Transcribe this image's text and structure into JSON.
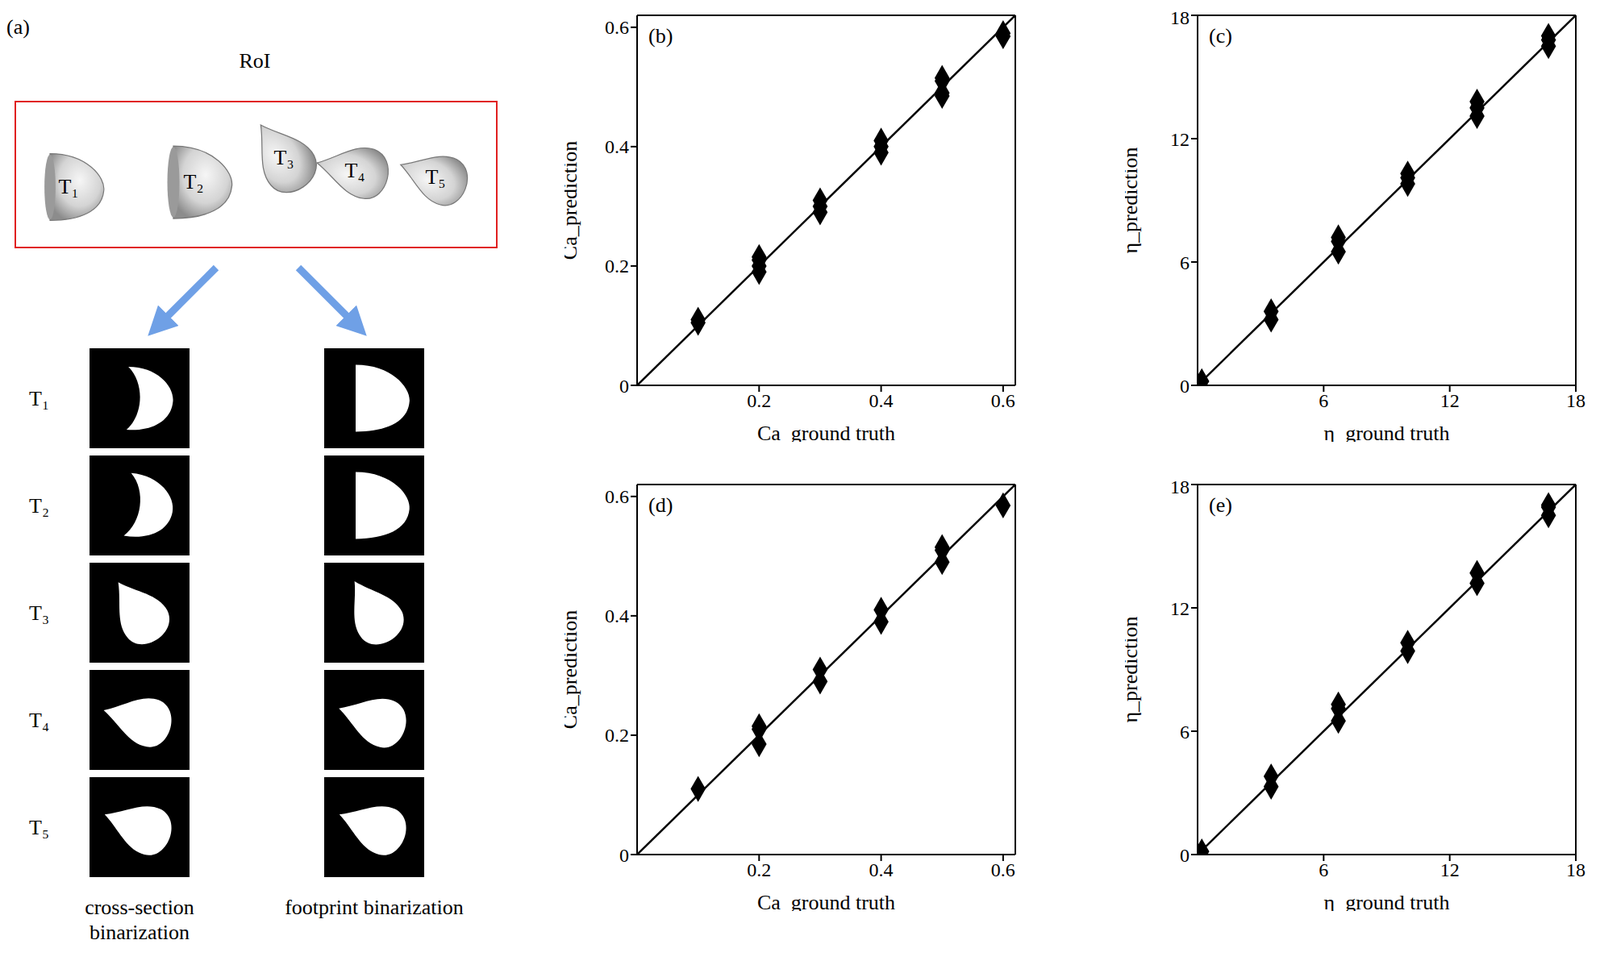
{
  "diagram": {
    "label": "(a)",
    "title": "RoI",
    "items": [
      "T₁",
      "T₂",
      "T₃",
      "T₄",
      "T₅"
    ],
    "columns": [
      "cross-section binarization",
      "footprint binarization"
    ]
  },
  "chart_data": [
    {
      "type": "scatter",
      "title": "(b)",
      "x_label": "Ca_ground truth",
      "y_label": "Ca_prediction",
      "xlim": [
        0,
        0.62
      ],
      "ylim": [
        0,
        0.62
      ],
      "xticks": [
        0.2,
        0.4,
        0.6
      ],
      "yticks": [
        0,
        0.2,
        0.4,
        0.6
      ],
      "series": [
        {
          "type": "scatter",
          "marker": "diamond",
          "color": "#000000",
          "x": [
            0.1,
            0.1,
            0.2,
            0.2,
            0.2,
            0.2,
            0.3,
            0.3,
            0.3,
            0.4,
            0.4,
            0.4,
            0.5,
            0.5,
            0.5,
            0.5,
            0.6,
            0.6
          ],
          "values": [
            0.105,
            0.11,
            0.19,
            0.2,
            0.21,
            0.215,
            0.29,
            0.3,
            0.31,
            0.39,
            0.4,
            0.41,
            0.485,
            0.49,
            0.51,
            0.515,
            0.585,
            0.59
          ]
        },
        {
          "type": "line",
          "line_style": "solid",
          "color": "#000000",
          "x": [
            0,
            0.62
          ],
          "values": [
            0,
            0.62
          ]
        }
      ]
    },
    {
      "type": "scatter",
      "title": "(c)",
      "x_label": "η_ground truth",
      "y_label": "η_prediction",
      "xlim": [
        0,
        18
      ],
      "ylim": [
        0,
        18
      ],
      "xticks": [
        6,
        12,
        18
      ],
      "yticks": [
        0,
        6,
        12,
        18
      ],
      "series": [
        {
          "type": "scatter",
          "marker": "diamond",
          "color": "#000000",
          "x": [
            0.2,
            3.5,
            3.5,
            6.7,
            6.7,
            6.7,
            10,
            10,
            10,
            13.3,
            13.3,
            13.3,
            16.7,
            16.7,
            16.7
          ],
          "values": [
            0.2,
            3.2,
            3.6,
            6.5,
            7.0,
            7.2,
            9.8,
            10.1,
            10.3,
            13.1,
            13.5,
            13.8,
            16.5,
            16.8,
            17.0
          ]
        },
        {
          "type": "line",
          "line_style": "solid",
          "color": "#000000",
          "x": [
            0,
            18
          ],
          "values": [
            0,
            18
          ]
        }
      ]
    },
    {
      "type": "scatter",
      "title": "(d)",
      "x_label": "Ca_ground truth",
      "y_label": "Ca_prediction",
      "xlim": [
        0,
        0.62
      ],
      "ylim": [
        0,
        0.62
      ],
      "xticks": [
        0.2,
        0.4,
        0.6
      ],
      "yticks": [
        0,
        0.2,
        0.4,
        0.6
      ],
      "series": [
        {
          "type": "scatter",
          "marker": "diamond",
          "color": "#000000",
          "x": [
            0.1,
            0.2,
            0.2,
            0.2,
            0.3,
            0.3,
            0.4,
            0.4,
            0.5,
            0.5,
            0.5,
            0.6
          ],
          "values": [
            0.11,
            0.185,
            0.21,
            0.215,
            0.29,
            0.31,
            0.39,
            0.41,
            0.49,
            0.51,
            0.515,
            0.585
          ]
        },
        {
          "type": "line",
          "line_style": "solid",
          "color": "#000000",
          "x": [
            0,
            0.62
          ],
          "values": [
            0,
            0.62
          ]
        }
      ]
    },
    {
      "type": "scatter",
      "title": "(e)",
      "x_label": "η_ground truth",
      "y_label": "η_prediction",
      "xlim": [
        0,
        18
      ],
      "ylim": [
        0,
        18
      ],
      "xticks": [
        6,
        12,
        18
      ],
      "yticks": [
        0,
        6,
        12,
        18
      ],
      "series": [
        {
          "type": "scatter",
          "marker": "diamond",
          "color": "#000000",
          "x": [
            0.2,
            3.5,
            3.5,
            6.7,
            6.7,
            6.7,
            10,
            10,
            13.3,
            13.3,
            16.7,
            16.7,
            16.7
          ],
          "values": [
            0.15,
            3.3,
            3.8,
            6.5,
            7.1,
            7.3,
            9.9,
            10.3,
            13.2,
            13.7,
            16.5,
            16.9,
            17.0
          ]
        },
        {
          "type": "line",
          "line_style": "solid",
          "color": "#000000",
          "x": [
            0,
            18
          ],
          "values": [
            0,
            18
          ]
        }
      ]
    }
  ]
}
